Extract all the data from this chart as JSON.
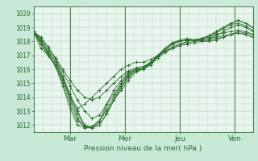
{
  "title": "",
  "xlabel": "Pression niveau de la mer( hPa )",
  "ylabel": "",
  "bg_color": "#c8e8d8",
  "plot_bg_color": "#e8f4ee",
  "line_color": "#2d6e2d",
  "marker_color": "#2d6e2d",
  "grid_color": "#a8c8a8",
  "tick_label_color": "#2d6e2d",
  "ylim": [
    1011.5,
    1020.5
  ],
  "day_labels": [
    "Mar",
    "Mer",
    "Jeu",
    "Ven"
  ],
  "day_positions": [
    0.167,
    0.417,
    0.667,
    0.917
  ],
  "series": [
    [
      1018.7,
      1018.0,
      1017.2,
      1016.5,
      1015.5,
      1014.2,
      1013.0,
      1012.0,
      1011.8,
      1012.2,
      1013.5,
      1014.5,
      1015.2,
      1015.8,
      1016.0,
      1016.0,
      1016.3,
      1016.8,
      1017.2,
      1017.5,
      1017.8,
      1018.0,
      1018.1,
      1018.0,
      1018.0,
      1018.1,
      1018.3,
      1018.5,
      1018.7,
      1018.6,
      1018.5
    ],
    [
      1018.7,
      1017.8,
      1017.0,
      1016.3,
      1015.0,
      1013.5,
      1012.3,
      1011.9,
      1011.9,
      1012.3,
      1013.2,
      1014.0,
      1015.0,
      1015.7,
      1016.0,
      1016.1,
      1016.5,
      1017.0,
      1017.5,
      1017.9,
      1018.1,
      1018.2,
      1018.1,
      1018.1,
      1018.2,
      1018.4,
      1018.7,
      1019.0,
      1019.2,
      1019.0,
      1018.7
    ],
    [
      1018.7,
      1018.2,
      1017.5,
      1016.8,
      1015.8,
      1014.8,
      1013.8,
      1013.0,
      1012.5,
      1012.7,
      1013.5,
      1014.2,
      1015.0,
      1015.6,
      1016.0,
      1016.1,
      1016.5,
      1017.0,
      1017.5,
      1017.9,
      1018.0,
      1018.1,
      1018.1,
      1018.2,
      1018.3,
      1018.5,
      1018.6,
      1018.7,
      1018.8,
      1018.7,
      1018.5
    ],
    [
      1018.7,
      1018.1,
      1017.3,
      1016.7,
      1015.5,
      1014.0,
      1012.8,
      1011.9,
      1011.8,
      1012.0,
      1012.8,
      1013.8,
      1014.8,
      1015.5,
      1015.9,
      1016.0,
      1016.4,
      1016.9,
      1017.4,
      1017.8,
      1018.0,
      1018.1,
      1018.1,
      1018.2,
      1018.4,
      1018.6,
      1018.9,
      1019.2,
      1019.3,
      1019.1,
      1018.8
    ],
    [
      1018.7,
      1018.0,
      1017.2,
      1016.5,
      1015.3,
      1013.8,
      1012.5,
      1011.8,
      1011.8,
      1012.0,
      1012.8,
      1013.8,
      1014.7,
      1015.4,
      1015.9,
      1016.0,
      1016.4,
      1016.9,
      1017.4,
      1017.8,
      1018.0,
      1018.1,
      1018.1,
      1018.2,
      1018.4,
      1018.7,
      1019.0,
      1019.3,
      1019.5,
      1019.3,
      1019.0
    ],
    [
      1018.7,
      1017.5,
      1017.0,
      1016.2,
      1014.8,
      1013.2,
      1012.0,
      1011.8,
      1011.9,
      1012.3,
      1013.0,
      1013.8,
      1014.5,
      1015.2,
      1015.8,
      1016.0,
      1016.4,
      1016.9,
      1017.4,
      1017.8,
      1018.0,
      1018.1,
      1018.1,
      1018.2,
      1018.4,
      1018.7,
      1019.0,
      1019.3,
      1019.5,
      1019.3,
      1019.0
    ],
    [
      1018.7,
      1017.8,
      1017.1,
      1016.3,
      1015.2,
      1014.0,
      1013.2,
      1013.5,
      1014.0,
      1014.5,
      1015.0,
      1015.5,
      1016.0,
      1016.3,
      1016.5,
      1016.5,
      1016.7,
      1017.0,
      1017.3,
      1017.5,
      1017.7,
      1017.8,
      1017.9,
      1018.0,
      1018.1,
      1018.2,
      1018.3,
      1018.5,
      1018.6,
      1018.5,
      1018.3
    ],
    [
      1018.7,
      1018.3,
      1017.6,
      1016.8,
      1016.0,
      1015.2,
      1014.5,
      1014.0,
      1013.8,
      1014.0,
      1014.5,
      1015.0,
      1015.5,
      1015.9,
      1016.1,
      1016.2,
      1016.5,
      1016.9,
      1017.3,
      1017.6,
      1017.8,
      1017.9,
      1018.0,
      1018.1,
      1018.2,
      1018.3,
      1018.4,
      1018.5,
      1018.6,
      1018.5,
      1018.3
    ]
  ]
}
